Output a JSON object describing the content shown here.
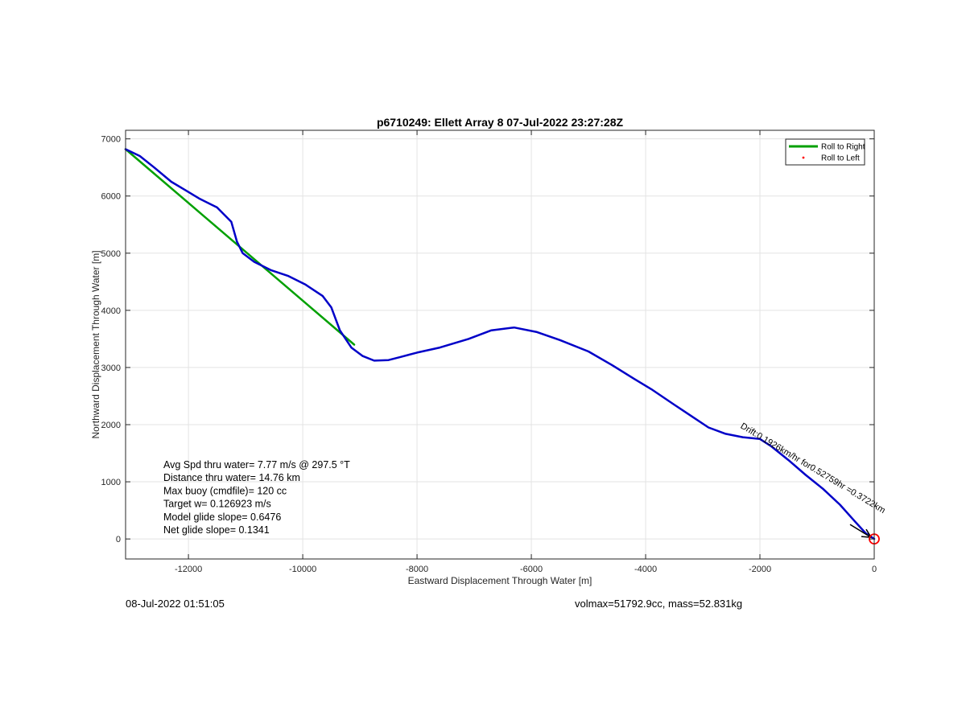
{
  "chart_data": {
    "type": "line",
    "title": "p6710249: Ellett Array 8 07-Jul-2022 23:27:28Z",
    "xlabel": "Eastward Displacement Through Water [m]",
    "ylabel": "Northward Displacement Through Water [m]",
    "xlim": [
      -13100,
      0
    ],
    "ylim": [
      -350,
      7150
    ],
    "xticks": [
      -12000,
      -10000,
      -8000,
      -6000,
      -4000,
      -2000,
      0
    ],
    "xtick_labels": [
      "-12000",
      "-10000",
      "-8000",
      "-6000",
      "-4000",
      "-2000",
      "0"
    ],
    "yticks": [
      0,
      1000,
      2000,
      3000,
      4000,
      5000,
      6000,
      7000
    ],
    "ytick_labels": [
      "0",
      "1000",
      "2000",
      "3000",
      "4000",
      "5000",
      "6000",
      "7000"
    ],
    "grid": true,
    "legend_position": "top-right",
    "legend": [
      {
        "label": "Roll to Right",
        "color": "#00a000",
        "style": "line"
      },
      {
        "label": "Roll to Left",
        "color": "#ff0000",
        "style": "marker"
      }
    ],
    "series": [
      {
        "name": "Roll to Right",
        "color": "#00a000",
        "x": [
          -13100,
          -9100
        ],
        "y": [
          6820,
          3400
        ]
      },
      {
        "color": "#0000c8",
        "x": [
          -13100,
          -12850,
          -12600,
          -12300,
          -12050,
          -11800,
          -11500,
          -11250,
          -11150,
          -11050,
          -10850,
          -10550,
          -10250,
          -9950,
          -9650,
          -9500,
          -9350,
          -9150,
          -8950,
          -8750,
          -8500,
          -8300,
          -8000,
          -7600,
          -7100,
          -6700,
          -6300,
          -5900,
          -5500,
          -5000,
          -4600,
          -4200,
          -3900,
          -3500,
          -3200,
          -2900,
          -2600,
          -2300,
          -2000,
          -1800,
          -1500,
          -1200,
          -900,
          -600,
          -350,
          -150,
          0
        ],
        "y": [
          6820,
          6700,
          6500,
          6250,
          6100,
          5950,
          5800,
          5550,
          5200,
          5000,
          4850,
          4700,
          4600,
          4450,
          4250,
          4050,
          3650,
          3350,
          3200,
          3120,
          3130,
          3180,
          3260,
          3350,
          3500,
          3650,
          3700,
          3620,
          3480,
          3280,
          3050,
          2800,
          2620,
          2350,
          2150,
          1950,
          1840,
          1780,
          1750,
          1620,
          1380,
          1120,
          880,
          600,
          320,
          100,
          0
        ]
      }
    ],
    "end_marker": {
      "x": 0,
      "y": 0,
      "color": "#ff0000"
    },
    "annotations": [
      "Avg Spd thru water=  7.77 m/s @ 297.5 °T",
      "Distance thru water= 14.76 km",
      "Max buoy (cmdfile)= 120 cc",
      "Target w= 0.126923 m/s",
      "Model glide slope= 0.6476",
      "Net glide slope= 0.1341"
    ],
    "rotated_label": "Drift:0.1926km/hr for0.52759hr =0.3722km"
  },
  "footer": {
    "timestamp": "08-Jul-2022 01:51:05",
    "vol_mass": "volmax=51792.9cc, mass=52.831kg"
  }
}
